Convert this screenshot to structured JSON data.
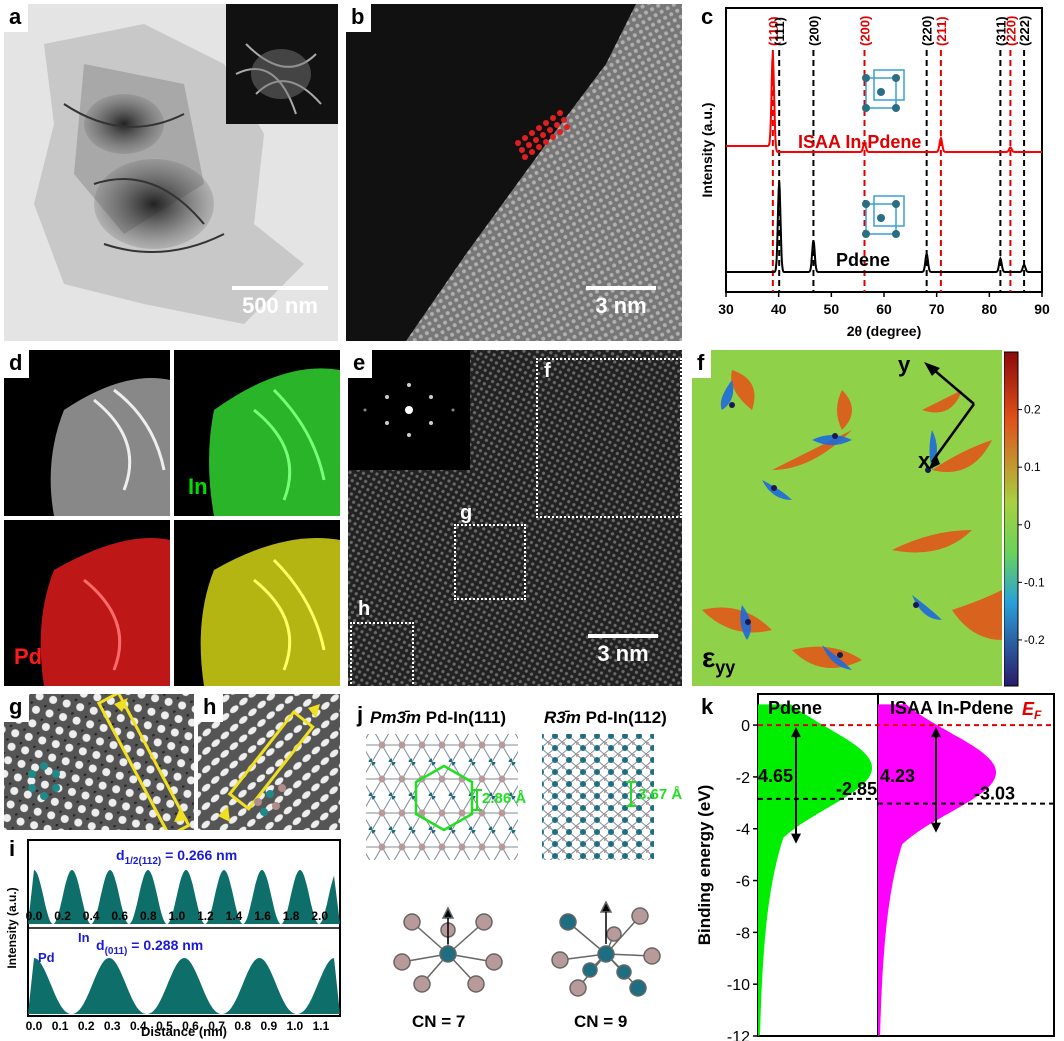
{
  "panels": {
    "a": {
      "label": "a",
      "scale": "500 nm"
    },
    "b": {
      "label": "b",
      "scale": "3 nm"
    },
    "c": {
      "label": "c"
    },
    "d": {
      "label": "d",
      "in_label": "In",
      "pd_label": "Pd"
    },
    "e": {
      "label": "e",
      "scale": "3 nm",
      "regions": [
        "f",
        "g",
        "h"
      ]
    },
    "f": {
      "label": "f",
      "strain_label": "ε",
      "strain_sub": "yy",
      "axis_y": "y",
      "axis_x": "x"
    },
    "g": {
      "label": "g"
    },
    "h": {
      "label": "h"
    },
    "i": {
      "label": "i"
    },
    "j": {
      "label": "j",
      "left_phase": "Pm3̄m",
      "left_title": "Pd-In(111)",
      "right_phase": "R3̄m",
      "right_title": "Pd-In(112)",
      "left_dist": "2.86 Å",
      "right_dist": "3.67 Å",
      "left_cn": "CN = 7",
      "right_cn": "CN = 9"
    },
    "k": {
      "label": "k"
    }
  },
  "chart_data": [
    {
      "id": "c",
      "type": "line",
      "xlabel": "2θ (degree)",
      "ylabel": "Intensity (a.u.)",
      "xlim": [
        30,
        90
      ],
      "xticks": [
        30,
        40,
        50,
        60,
        70,
        80,
        90
      ],
      "series": [
        {
          "name": "ISAA In-Pdene",
          "color": "#ff0000",
          "peaks": [
            [
              38.9,
              1.0
            ],
            [
              56.3,
              0.1
            ],
            [
              70.8,
              0.15
            ],
            [
              84.0,
              0.05
            ]
          ]
        },
        {
          "name": "Pdene",
          "color": "#000000",
          "peaks": [
            [
              40.1,
              1.0
            ],
            [
              46.6,
              0.35
            ],
            [
              68.1,
              0.2
            ],
            [
              82.1,
              0.15
            ],
            [
              86.6,
              0.08
            ]
          ]
        }
      ],
      "red_lines": [
        {
          "x": 38.9,
          "label": "(110)"
        },
        {
          "x": 56.3,
          "label": "(200)"
        },
        {
          "x": 70.8,
          "label": "(211)"
        },
        {
          "x": 84.0,
          "label": "(220)"
        }
      ],
      "black_lines": [
        {
          "x": 40.1,
          "label": "(111)"
        },
        {
          "x": 46.6,
          "label": "(200)"
        },
        {
          "x": 68.1,
          "label": "(220)"
        },
        {
          "x": 82.1,
          "label": "(311)"
        },
        {
          "x": 86.6,
          "label": "(222)"
        }
      ]
    },
    {
      "id": "f-colorbar",
      "type": "heatmap",
      "ticks": [
        "0.2",
        "0.1",
        "0",
        "-0.1",
        "-0.2"
      ],
      "tick_values": [
        0.2,
        0.1,
        0,
        -0.1,
        -0.2
      ],
      "range": [
        -0.28,
        0.3
      ]
    },
    {
      "id": "i",
      "type": "line",
      "ylabel": "Intensity (a.u.)",
      "xlabel": "Distance (nm)",
      "top": {
        "annot": "d",
        "annot_sub": "1/2(112)",
        "annot_val": " = 0.266 nm",
        "xlim": [
          0,
          2.1
        ],
        "xticks": [
          "0.0",
          "0.2",
          "0.4",
          "0.6",
          "0.8",
          "1.0",
          "1.2",
          "1.4",
          "1.6",
          "1.8",
          "2.0"
        ],
        "tick_values": [
          0.0,
          0.2,
          0.4,
          0.6,
          0.8,
          1.0,
          1.2,
          1.4,
          1.6,
          1.8,
          2.0
        ],
        "period": 0.266
      },
      "bottom": {
        "annot": "d",
        "annot_sub": "(011)",
        "annot_val": " = 0.288 nm",
        "pd": "Pd",
        "in": "In",
        "xlim": [
          0,
          1.15
        ],
        "xticks": [
          "0.0",
          "0.1",
          "0.2",
          "0.3",
          "0.4",
          "0.5",
          "0.6",
          "0.7",
          "0.8",
          "0.9",
          "1.0",
          "1.1"
        ],
        "tick_values": [
          0.0,
          0.1,
          0.2,
          0.3,
          0.4,
          0.5,
          0.6,
          0.7,
          0.8,
          0.9,
          1.0,
          1.1
        ],
        "period": 0.288
      }
    },
    {
      "id": "k",
      "type": "area",
      "ylabel": "Binding energy (eV)",
      "ylim": [
        -12,
        1.2
      ],
      "yticks": [
        0,
        -2,
        -4,
        -6,
        -8,
        -10,
        -12
      ],
      "ef_label": "E",
      "ef_sub": "F",
      "series": [
        {
          "name": "Pdene",
          "color": "#00ee00",
          "center": -2.85,
          "width": 4.65,
          "center_label": "-2.85",
          "width_label": "4.65"
        },
        {
          "name": "ISAA In-Pdene",
          "color": "#ff00ff",
          "center": -3.03,
          "width": 4.23,
          "center_label": "-3.03",
          "width_label": "4.23"
        }
      ]
    }
  ]
}
